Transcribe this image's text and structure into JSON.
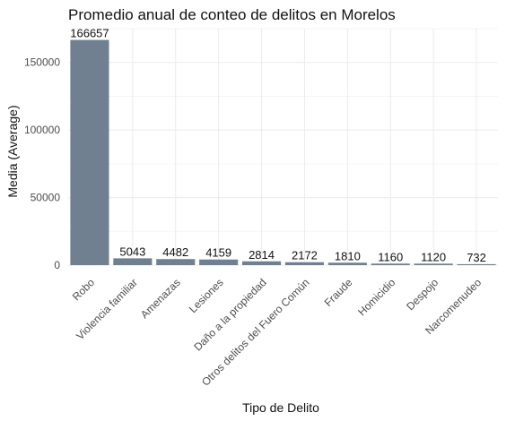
{
  "chart_data": {
    "type": "bar",
    "title": "Promedio anual de conteo de delitos en Morelos",
    "xlabel": "Tipo de Delito",
    "ylabel": "Media (Average)",
    "categories": [
      "Robo",
      "Violencia familiar",
      "Amenazas",
      "Lesiones",
      "Daño a la propiedad",
      "Otros delitos del Fuero Común",
      "Fraude",
      "Homicidio",
      "Despojo",
      "Narcomenudeo"
    ],
    "values": [
      166657,
      5043,
      4482,
      4159,
      2814,
      2172,
      1810,
      1160,
      1120,
      732
    ],
    "ylim": [
      0,
      175000
    ],
    "yticks": [
      0,
      50000,
      100000,
      150000
    ],
    "ytick_labels": [
      "0",
      "50000",
      "100000",
      "150000"
    ],
    "bar_color": "#708090",
    "grid": true,
    "legend": "none"
  }
}
